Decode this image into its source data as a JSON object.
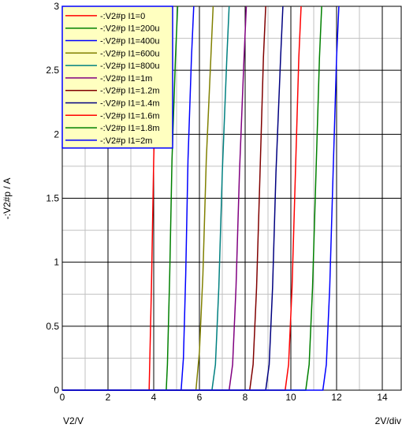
{
  "chart_data": {
    "type": "line",
    "xlabel": "V2/V",
    "ylabel": "-:V2#p / A",
    "xdiv_label": "2V/div",
    "xlim": [
      0,
      15
    ],
    "ylim": [
      0,
      3
    ],
    "x_ticks": [
      "0",
      "2",
      "4",
      "6",
      "8",
      "10",
      "12",
      "14"
    ],
    "y_ticks": [
      "0",
      "0.5",
      "1",
      "1.5",
      "2",
      "2.5",
      "3"
    ],
    "grid": true,
    "minor_grid": true,
    "legend_position": "top-left",
    "series": [
      {
        "name": "-:V2#p I1=0",
        "color": "#ff0000",
        "x": [
          0,
          3.8,
          3.9,
          4.0,
          4.1,
          4.2,
          4.3
        ],
        "y": [
          0,
          0,
          0.8,
          1.8,
          2.5,
          2.9,
          3.0
        ]
      },
      {
        "name": "-:V2#p I1=200u",
        "color": "#008000",
        "x": [
          0,
          4.55,
          4.6,
          4.7,
          4.8,
          4.95,
          5.05
        ],
        "y": [
          0,
          0,
          0.2,
          0.9,
          1.8,
          2.6,
          3.0
        ]
      },
      {
        "name": "-:V2#p I1=400u",
        "color": "#0000ff",
        "x": [
          0,
          5.2,
          5.3,
          5.4,
          5.5,
          5.65,
          5.75
        ],
        "y": [
          0,
          0,
          0.25,
          0.9,
          1.8,
          2.6,
          3.0
        ]
      },
      {
        "name": "-:V2#p I1=600u",
        "color": "#808000",
        "x": [
          0,
          5.85,
          6.0,
          6.15,
          6.3,
          6.5,
          6.6
        ],
        "y": [
          0,
          0,
          0.3,
          0.9,
          1.8,
          2.6,
          3.0
        ]
      },
      {
        "name": "-:V2#p I1=800u",
        "color": "#008080",
        "x": [
          0,
          6.55,
          6.7,
          6.85,
          7.0,
          7.2,
          7.3
        ],
        "y": [
          0,
          0,
          0.2,
          0.8,
          1.7,
          2.6,
          3.0
        ]
      },
      {
        "name": "-:V2#p I1=1m",
        "color": "#800080",
        "x": [
          0,
          7.3,
          7.45,
          7.6,
          7.75,
          7.95,
          8.05
        ],
        "y": [
          0,
          0,
          0.2,
          0.8,
          1.7,
          2.6,
          3.0
        ]
      },
      {
        "name": "-:V2#p I1=1.2m",
        "color": "#800000",
        "x": [
          0,
          8.2,
          8.35,
          8.5,
          8.65,
          8.8,
          8.9
        ],
        "y": [
          0,
          0,
          0.2,
          0.8,
          1.7,
          2.6,
          3.0
        ]
      },
      {
        "name": "-:V2#p I1=1.4m",
        "color": "#000080",
        "x": [
          0,
          8.9,
          9.05,
          9.2,
          9.35,
          9.55,
          9.65
        ],
        "y": [
          0,
          0,
          0.2,
          0.8,
          1.7,
          2.6,
          3.0
        ]
      },
      {
        "name": "-:V2#p I1=1.6m",
        "color": "#ff0000",
        "x": [
          0,
          9.75,
          9.9,
          10.05,
          10.2,
          10.35,
          10.45
        ],
        "y": [
          0,
          0,
          0.2,
          0.8,
          1.7,
          2.6,
          3.0
        ]
      },
      {
        "name": "-:V2#p I1=1.8m",
        "color": "#008000",
        "x": [
          0,
          10.65,
          10.8,
          10.95,
          11.1,
          11.25,
          11.35
        ],
        "y": [
          0,
          0,
          0.2,
          0.8,
          1.7,
          2.6,
          3.0
        ]
      },
      {
        "name": "-:V2#p I1=2m",
        "color": "#0000ff",
        "x": [
          0,
          11.4,
          11.55,
          11.7,
          11.85,
          12.0,
          12.1
        ],
        "y": [
          0,
          0,
          0.2,
          0.8,
          1.7,
          2.6,
          3.0
        ]
      }
    ]
  },
  "colors": {
    "plot_background": "#ffffff",
    "major_grid": "#000000",
    "minor_grid": "#c0c0c0",
    "legend_background": "#ffffc0",
    "legend_border": "#0000ff"
  }
}
